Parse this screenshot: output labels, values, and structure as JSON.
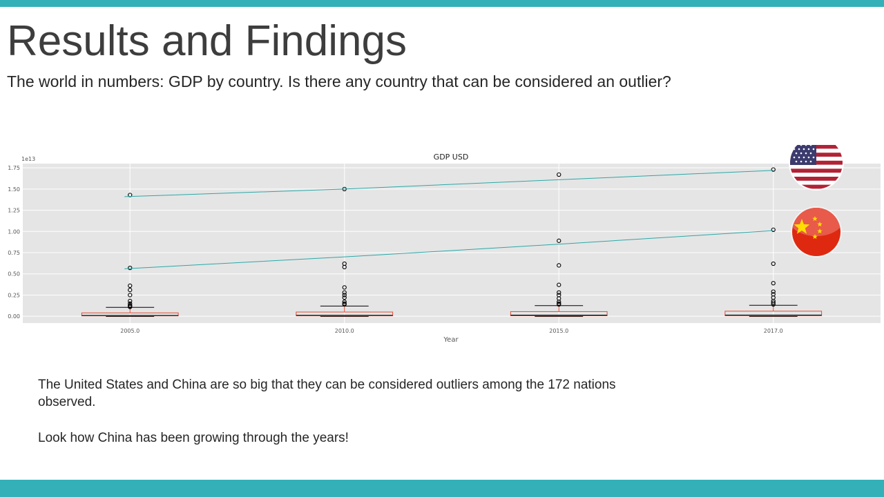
{
  "slide": {
    "title": "Results and Findings",
    "subtitle": "The world in numbers: GDP by country. Is there any country that can be considered an outlier?",
    "paragraphs": [
      "The United States and China are so big that they can be considered outliers among the 172 nations observed.",
      "Look how China has been growing through the years!"
    ],
    "accent_color": "#33b0b8"
  },
  "icons": [
    "us-flag-icon",
    "china-flag-icon"
  ],
  "chart_data": {
    "type": "boxplot",
    "title": "GDP USD",
    "xlabel": "Year",
    "ylabel": "",
    "y_multiplier_label": "1e13",
    "categories": [
      "2005.0",
      "2010.0",
      "2015.0",
      "2017.0"
    ],
    "ylim": [
      -0.08,
      1.8
    ],
    "y_ticks": [
      0.0,
      0.25,
      0.5,
      0.75,
      1.0,
      1.25,
      1.5,
      1.75
    ],
    "y_tick_labels": [
      "0.00",
      "0.25",
      "0.50",
      "0.75",
      "1.00",
      "1.25",
      "1.50",
      "1.75"
    ],
    "grid": true,
    "boxes": [
      {
        "category": "2005.0",
        "q1": 0.005,
        "median": 0.01,
        "q3": 0.04,
        "whisker_low": 0.0,
        "whisker_high": 0.105,
        "outliers": [
          0.11,
          0.12,
          0.13,
          0.15,
          0.18,
          0.25,
          0.31,
          0.36,
          0.57,
          1.43
        ]
      },
      {
        "category": "2010.0",
        "q1": 0.005,
        "median": 0.012,
        "q3": 0.05,
        "whisker_low": 0.0,
        "whisker_high": 0.12,
        "outliers": [
          0.14,
          0.15,
          0.17,
          0.22,
          0.25,
          0.28,
          0.34,
          0.58,
          0.62,
          1.5
        ]
      },
      {
        "category": "2015.0",
        "q1": 0.006,
        "median": 0.014,
        "q3": 0.055,
        "whisker_low": 0.0,
        "whisker_high": 0.125,
        "outliers": [
          0.14,
          0.15,
          0.17,
          0.21,
          0.25,
          0.28,
          0.37,
          0.6,
          0.89,
          1.67
        ]
      },
      {
        "category": "2017.0",
        "q1": 0.006,
        "median": 0.015,
        "q3": 0.06,
        "whisker_low": 0.0,
        "whisker_high": 0.13,
        "outliers": [
          0.14,
          0.16,
          0.18,
          0.22,
          0.26,
          0.29,
          0.39,
          0.62,
          1.02,
          1.73
        ]
      }
    ],
    "trend_lines": [
      {
        "name": "United States",
        "values": [
          1.41,
          1.5,
          1.61,
          1.72
        ]
      },
      {
        "name": "China",
        "values": [
          0.56,
          0.7,
          0.85,
          1.01
        ]
      }
    ],
    "colors": {
      "plot_bg": "#e5e5e5",
      "grid": "#ffffff",
      "box": "#e24a33",
      "whisker": "#000000",
      "median": "#000000",
      "outlier": "#000000",
      "trend": "#2aa7a7",
      "tick_text": "#555555"
    }
  }
}
